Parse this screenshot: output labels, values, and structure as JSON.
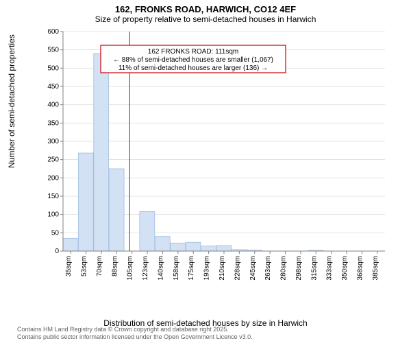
{
  "title": "162, FRONKS ROAD, HARWICH, CO12 4EF",
  "subtitle": "Size of property relative to semi-detached houses in Harwich",
  "y_axis_label": "Number of semi-detached properties",
  "x_axis_label": "Distribution of semi-detached houses by size in Harwich",
  "footer_line1": "Contains HM Land Registry data © Crown copyright and database right 2025.",
  "footer_line2": "Contains public sector information licensed under the Open Government Licence v3.0.",
  "annotation": {
    "line1": "162 FRONKS ROAD: 111sqm",
    "line2": "← 88% of semi-detached houses are smaller (1,067)",
    "line3": "11% of semi-detached houses are larger (136) →",
    "box_border": "#cc0000",
    "box_bg": "#ffffff",
    "fontsize": 10
  },
  "chart": {
    "type": "histogram",
    "ylim": [
      0,
      600
    ],
    "ytick_step": 50,
    "x_categories": [
      "35sqm",
      "53sqm",
      "70sqm",
      "88sqm",
      "105sqm",
      "123sqm",
      "140sqm",
      "158sqm",
      "175sqm",
      "193sqm",
      "210sqm",
      "228sqm",
      "245sqm",
      "263sqm",
      "280sqm",
      "298sqm",
      "315sqm",
      "333sqm",
      "350sqm",
      "368sqm",
      "385sqm"
    ],
    "values": [
      35,
      268,
      540,
      225,
      0,
      108,
      40,
      22,
      24,
      14,
      15,
      4,
      3,
      0,
      0,
      0,
      2,
      0,
      0,
      0,
      0
    ],
    "bar_fill": "#d2e1f4",
    "bar_stroke": "#9fbde0",
    "marker_line_x_index": 4.35,
    "marker_line_color": "#cc0000",
    "background": "#ffffff",
    "grid_color": "#c8c8c8",
    "axis_color": "#808080",
    "tick_font_size": 10,
    "x_tick_rotation": -90
  }
}
